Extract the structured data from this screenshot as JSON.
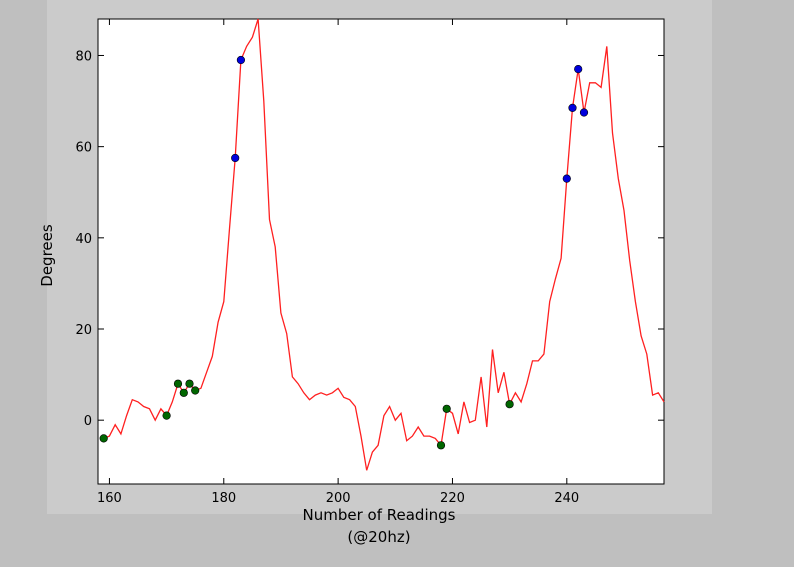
{
  "chart_data": {
    "type": "line",
    "title": "",
    "xlabel": "Number of Readings",
    "xlabel_line2": "(@20hz)",
    "ylabel": "Degrees",
    "xlim": [
      158,
      257
    ],
    "ylim": [
      -14,
      88
    ],
    "xticks": [
      160,
      180,
      200,
      220,
      240
    ],
    "yticks": [
      0,
      20,
      40,
      60,
      80
    ],
    "grid": false,
    "legend": "none",
    "colors": {
      "line": "#ff2020",
      "upper_points": "#0000dd",
      "lower_points": "#006600",
      "plot_bg": "#ffffff",
      "figure_bg": "#cbcbcb",
      "page_bg": "#bfbfbf"
    },
    "line_series": {
      "x": [
        159,
        160,
        161,
        162,
        163,
        164,
        165,
        166,
        167,
        168,
        169,
        170,
        171,
        172,
        173,
        174,
        175,
        176,
        177,
        178,
        179,
        180,
        181,
        182,
        183,
        184,
        185,
        186,
        187,
        188,
        189,
        190,
        191,
        192,
        193,
        194,
        195,
        196,
        197,
        198,
        199,
        200,
        201,
        202,
        203,
        204,
        205,
        206,
        207,
        208,
        209,
        210,
        211,
        212,
        213,
        214,
        215,
        216,
        217,
        218,
        219,
        220,
        221,
        222,
        223,
        224,
        225,
        226,
        227,
        228,
        229,
        230,
        231,
        232,
        233,
        234,
        235,
        236,
        237,
        238,
        239,
        240,
        241,
        242,
        243,
        244,
        245,
        246,
        247,
        248,
        249,
        250,
        251,
        252,
        253,
        254,
        255,
        256,
        257
      ],
      "y": [
        -4,
        -3.5,
        -1,
        -3,
        1,
        4.5,
        4,
        3,
        2.5,
        0,
        2.5,
        1,
        4,
        8,
        6,
        8,
        6.5,
        7,
        10.5,
        14,
        21.5,
        26,
        42,
        57.5,
        79,
        82,
        84,
        88,
        70,
        44,
        38,
        23.5,
        19,
        9.5,
        8,
        6,
        4.5,
        5.5,
        6,
        5.5,
        6,
        7,
        5,
        4.5,
        3,
        -3.5,
        -11,
        -7,
        -5.5,
        1,
        3,
        0,
        1.5,
        -4.5,
        -3.5,
        -1.5,
        -3.5,
        -3.5,
        -4,
        -5.5,
        2.5,
        1.5,
        -3,
        4,
        -0.5,
        0,
        9.5,
        -1.5,
        15.5,
        6,
        10.5,
        3.5,
        6,
        4,
        8,
        13,
        13,
        14.5,
        26,
        31,
        35.5,
        53,
        68.5,
        77,
        67.5,
        74,
        74,
        73,
        82,
        63,
        53,
        46,
        35,
        26,
        18.5,
        14.5,
        5.5,
        6,
        4
      ]
    },
    "upper_points": {
      "x": [
        182,
        183,
        240,
        241,
        242,
        243
      ],
      "y": [
        57.5,
        79,
        53,
        68.5,
        77,
        67.5
      ]
    },
    "lower_points": {
      "x": [
        159,
        170,
        172,
        173,
        174,
        175,
        218,
        219,
        230
      ],
      "y": [
        -4,
        1,
        8,
        6,
        8,
        6.5,
        -5.5,
        2.5,
        3.5
      ]
    }
  }
}
